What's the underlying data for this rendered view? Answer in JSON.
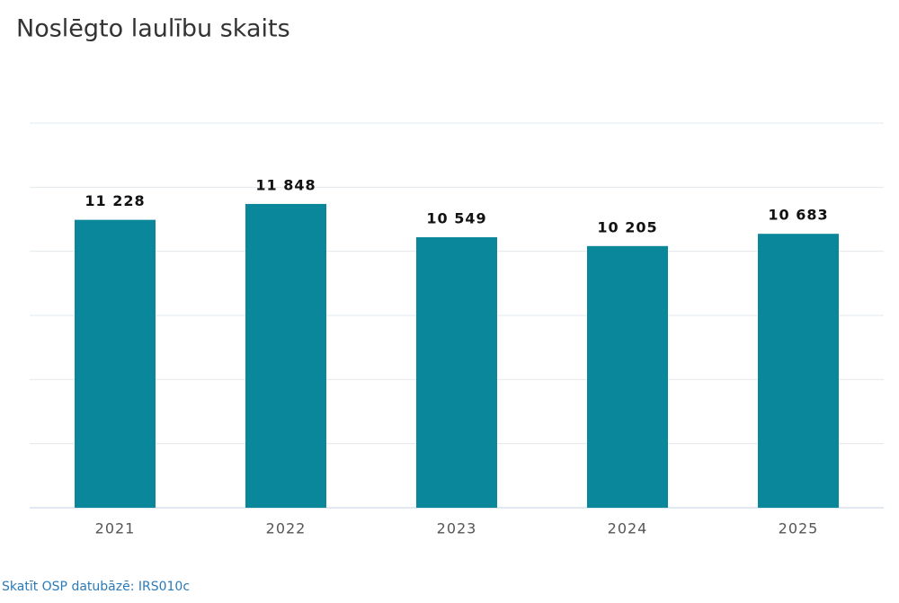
{
  "chart_data": {
    "type": "bar",
    "title": "Noslēgto laulību skaits",
    "categories": [
      "2021",
      "2022",
      "2023",
      "2024",
      "2025"
    ],
    "values": [
      11228,
      11848,
      10549,
      10205,
      10683
    ],
    "value_labels": [
      "11 228",
      "11 848",
      "10 549",
      "10 205",
      "10 683"
    ],
    "color": "#0b879c",
    "ylim": [
      0,
      15000
    ],
    "yticks": [
      0,
      2500,
      5000,
      7500,
      10000,
      12500,
      15000
    ],
    "grid": true,
    "source_link": "Skatīt OSP datubāzē: IRS010c"
  }
}
